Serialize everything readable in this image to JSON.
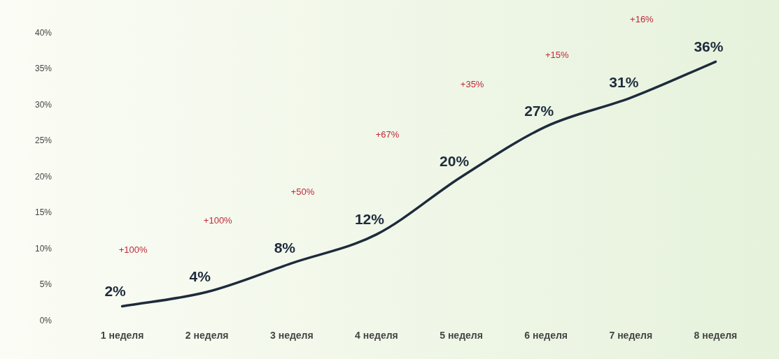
{
  "chart_data": {
    "type": "line",
    "categories": [
      "1 неделя",
      "2 неделя",
      "3 неделя",
      "4 неделя",
      "5 неделя",
      "6 неделя",
      "7 неделя",
      "8 неделя"
    ],
    "series": [
      {
        "color": "#1e2b3c",
        "values": [
          2,
          4,
          8,
          12,
          20,
          27,
          31,
          36
        ]
      }
    ],
    "value_labels": [
      "2%",
      "4%",
      "8%",
      "12%",
      "20%",
      "27%",
      "31%",
      "36%"
    ],
    "annotations": [
      "+100%",
      "+100%",
      "+50%",
      "+67%",
      "+35%",
      "+15%",
      "+16%"
    ],
    "ylim": [
      0,
      40
    ],
    "yticks": [
      {
        "value": 0,
        "label": "0%"
      },
      {
        "value": 5,
        "label": "5%"
      },
      {
        "value": 10,
        "label": "10%"
      },
      {
        "value": 15,
        "label": "15%"
      },
      {
        "value": 20,
        "label": "20%"
      },
      {
        "value": 25,
        "label": "25%"
      },
      {
        "value": 30,
        "label": "30%"
      },
      {
        "value": 35,
        "label": "35%"
      },
      {
        "value": 40,
        "label": "40%"
      }
    ],
    "grid": false,
    "legend": false,
    "marker": "none",
    "line_style": "solid"
  }
}
